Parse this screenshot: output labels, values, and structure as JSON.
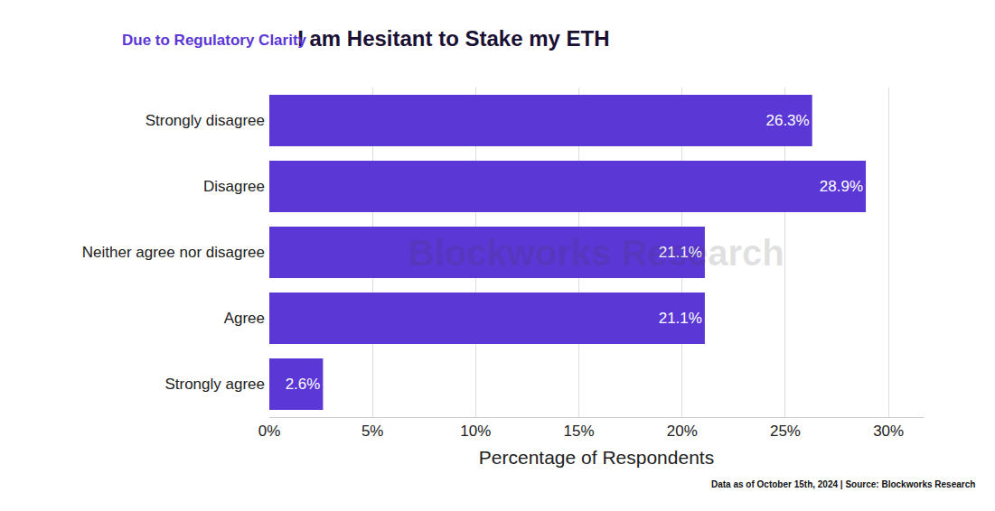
{
  "chart_data": {
    "type": "bar",
    "orientation": "horizontal",
    "title": "I am Hesitant to Stake my ETH",
    "subtitle": "Due to Regulatory Clarity",
    "x_label": "Percentage of Respondents",
    "footnote": "Data as of October 15th, 2024 | Source: Blockworks Research",
    "watermark": "Blockworks Research",
    "categories": [
      "Strongly disagree",
      "Disagree",
      "Neither agree nor disagree",
      "Agree",
      "Strongly agree"
    ],
    "values": [
      26.3,
      28.9,
      21.1,
      21.1,
      2.6
    ],
    "value_labels": [
      "26.3%",
      "28.9%",
      "21.1%",
      "21.1%",
      "2.6%"
    ],
    "data_labels": true,
    "color": "#5b37d6",
    "xlim": [
      0,
      31.7
    ],
    "xticks": [
      {
        "value": 0,
        "label": "0%"
      },
      {
        "value": 5,
        "label": "5%"
      },
      {
        "value": 10,
        "label": "10%"
      },
      {
        "value": 15,
        "label": "15%"
      },
      {
        "value": 20,
        "label": "20%"
      },
      {
        "value": 25,
        "label": "25%"
      },
      {
        "value": 30,
        "label": "30%"
      }
    ],
    "grid": true
  }
}
